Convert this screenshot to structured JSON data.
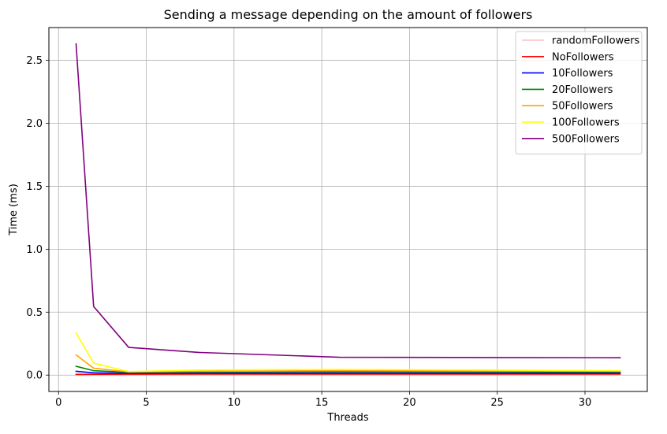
{
  "chart_data": {
    "type": "line",
    "title": "Sending a message depending on the amount of followers",
    "xlabel": "Threads",
    "ylabel": "Time (ms)",
    "xlim": [
      -0.55,
      33.55
    ],
    "ylim": [
      -0.13,
      2.76
    ],
    "xticks": [
      0,
      5,
      10,
      15,
      20,
      25,
      30
    ],
    "xtick_labels": [
      "0",
      "5",
      "10",
      "15",
      "20",
      "25",
      "30"
    ],
    "yticks": [
      0.0,
      0.5,
      1.0,
      1.5,
      2.0,
      2.5
    ],
    "ytick_labels": [
      "0.0",
      "0.5",
      "1.0",
      "1.5",
      "2.0",
      "2.5"
    ],
    "grid": true,
    "legend_position": "top-right",
    "x": [
      1,
      2,
      4,
      8,
      16,
      32
    ],
    "series": [
      {
        "name": "randomFollowers",
        "color": "#ffc0cb",
        "values": [
          0.01,
          0.01,
          0.012,
          0.012,
          0.012,
          0.012
        ]
      },
      {
        "name": "NoFollowers",
        "color": "#ff0000",
        "values": [
          0.005,
          0.006,
          0.007,
          0.008,
          0.008,
          0.008
        ]
      },
      {
        "name": "10Followers",
        "color": "#0000ff",
        "values": [
          0.03,
          0.018,
          0.015,
          0.016,
          0.016,
          0.016
        ]
      },
      {
        "name": "20Followers",
        "color": "#008000",
        "values": [
          0.07,
          0.035,
          0.022,
          0.025,
          0.027,
          0.025
        ]
      },
      {
        "name": "50Followers",
        "color": "#ffa500",
        "values": [
          0.16,
          0.055,
          0.025,
          0.03,
          0.035,
          0.03
        ]
      },
      {
        "name": "100Followers",
        "color": "#ffff00",
        "values": [
          0.335,
          0.095,
          0.028,
          0.04,
          0.045,
          0.035
        ]
      },
      {
        "name": "500Followers",
        "color": "#800080",
        "values": [
          2.63,
          0.545,
          0.22,
          0.18,
          0.142,
          0.138
        ]
      }
    ]
  }
}
